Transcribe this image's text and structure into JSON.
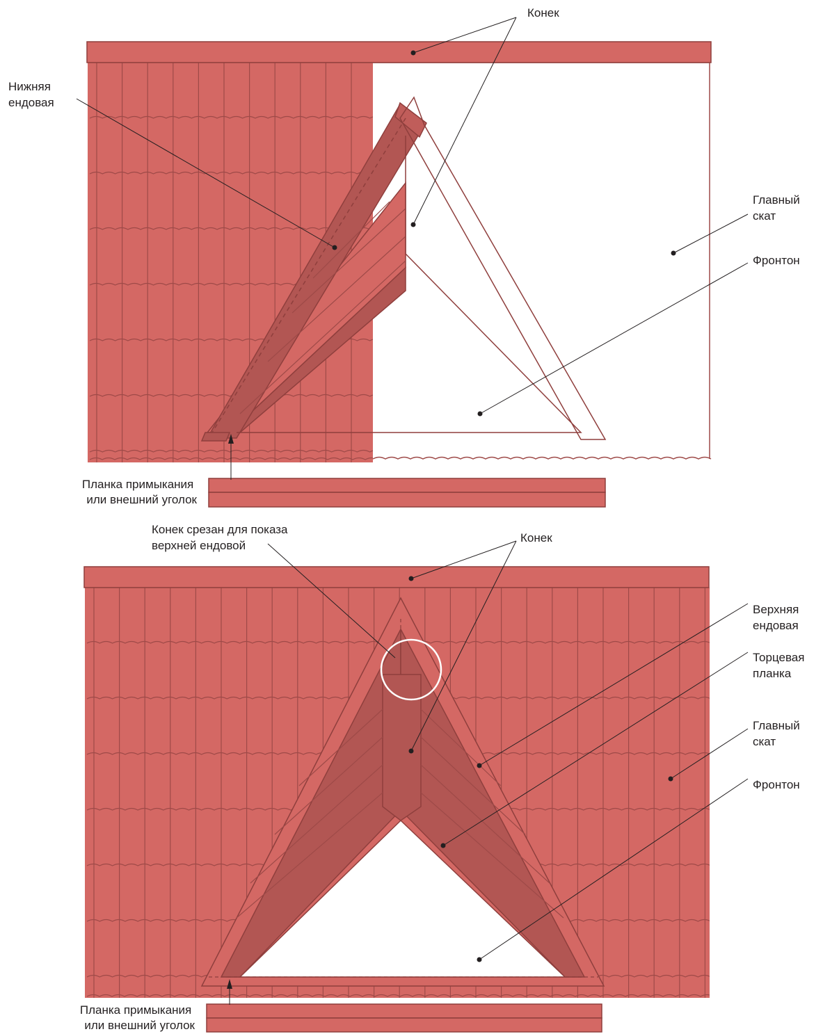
{
  "colors": {
    "roof_tile": "#d46864",
    "roof_shadow": "#b25653",
    "tile_lines": "#9e4a48",
    "label_text": "#231f20",
    "highlight_circle": "#ffffff"
  },
  "diagram_top": {
    "labels": {
      "ridge": "Конек",
      "lower_valley": [
        "Нижняя",
        "ендовая"
      ],
      "main_slope": [
        "Главный",
        "скат"
      ],
      "gable": "Фронтон",
      "abutment_strip": [
        "Планка примыкания",
        "или внешний уголок"
      ]
    }
  },
  "diagram_bottom": {
    "labels": {
      "ridge_cut": [
        "Конек срезан для показа",
        "верхней ендовой"
      ],
      "ridge": "Конек",
      "upper_valley": [
        "Верхняя",
        "ендовая"
      ],
      "end_strip": [
        "Торцевая",
        "планка"
      ],
      "main_slope": [
        "Главный",
        "скат"
      ],
      "gable": "Фронтон",
      "abutment_strip": [
        "Планка примыкания",
        "или внешний уголок"
      ]
    }
  }
}
